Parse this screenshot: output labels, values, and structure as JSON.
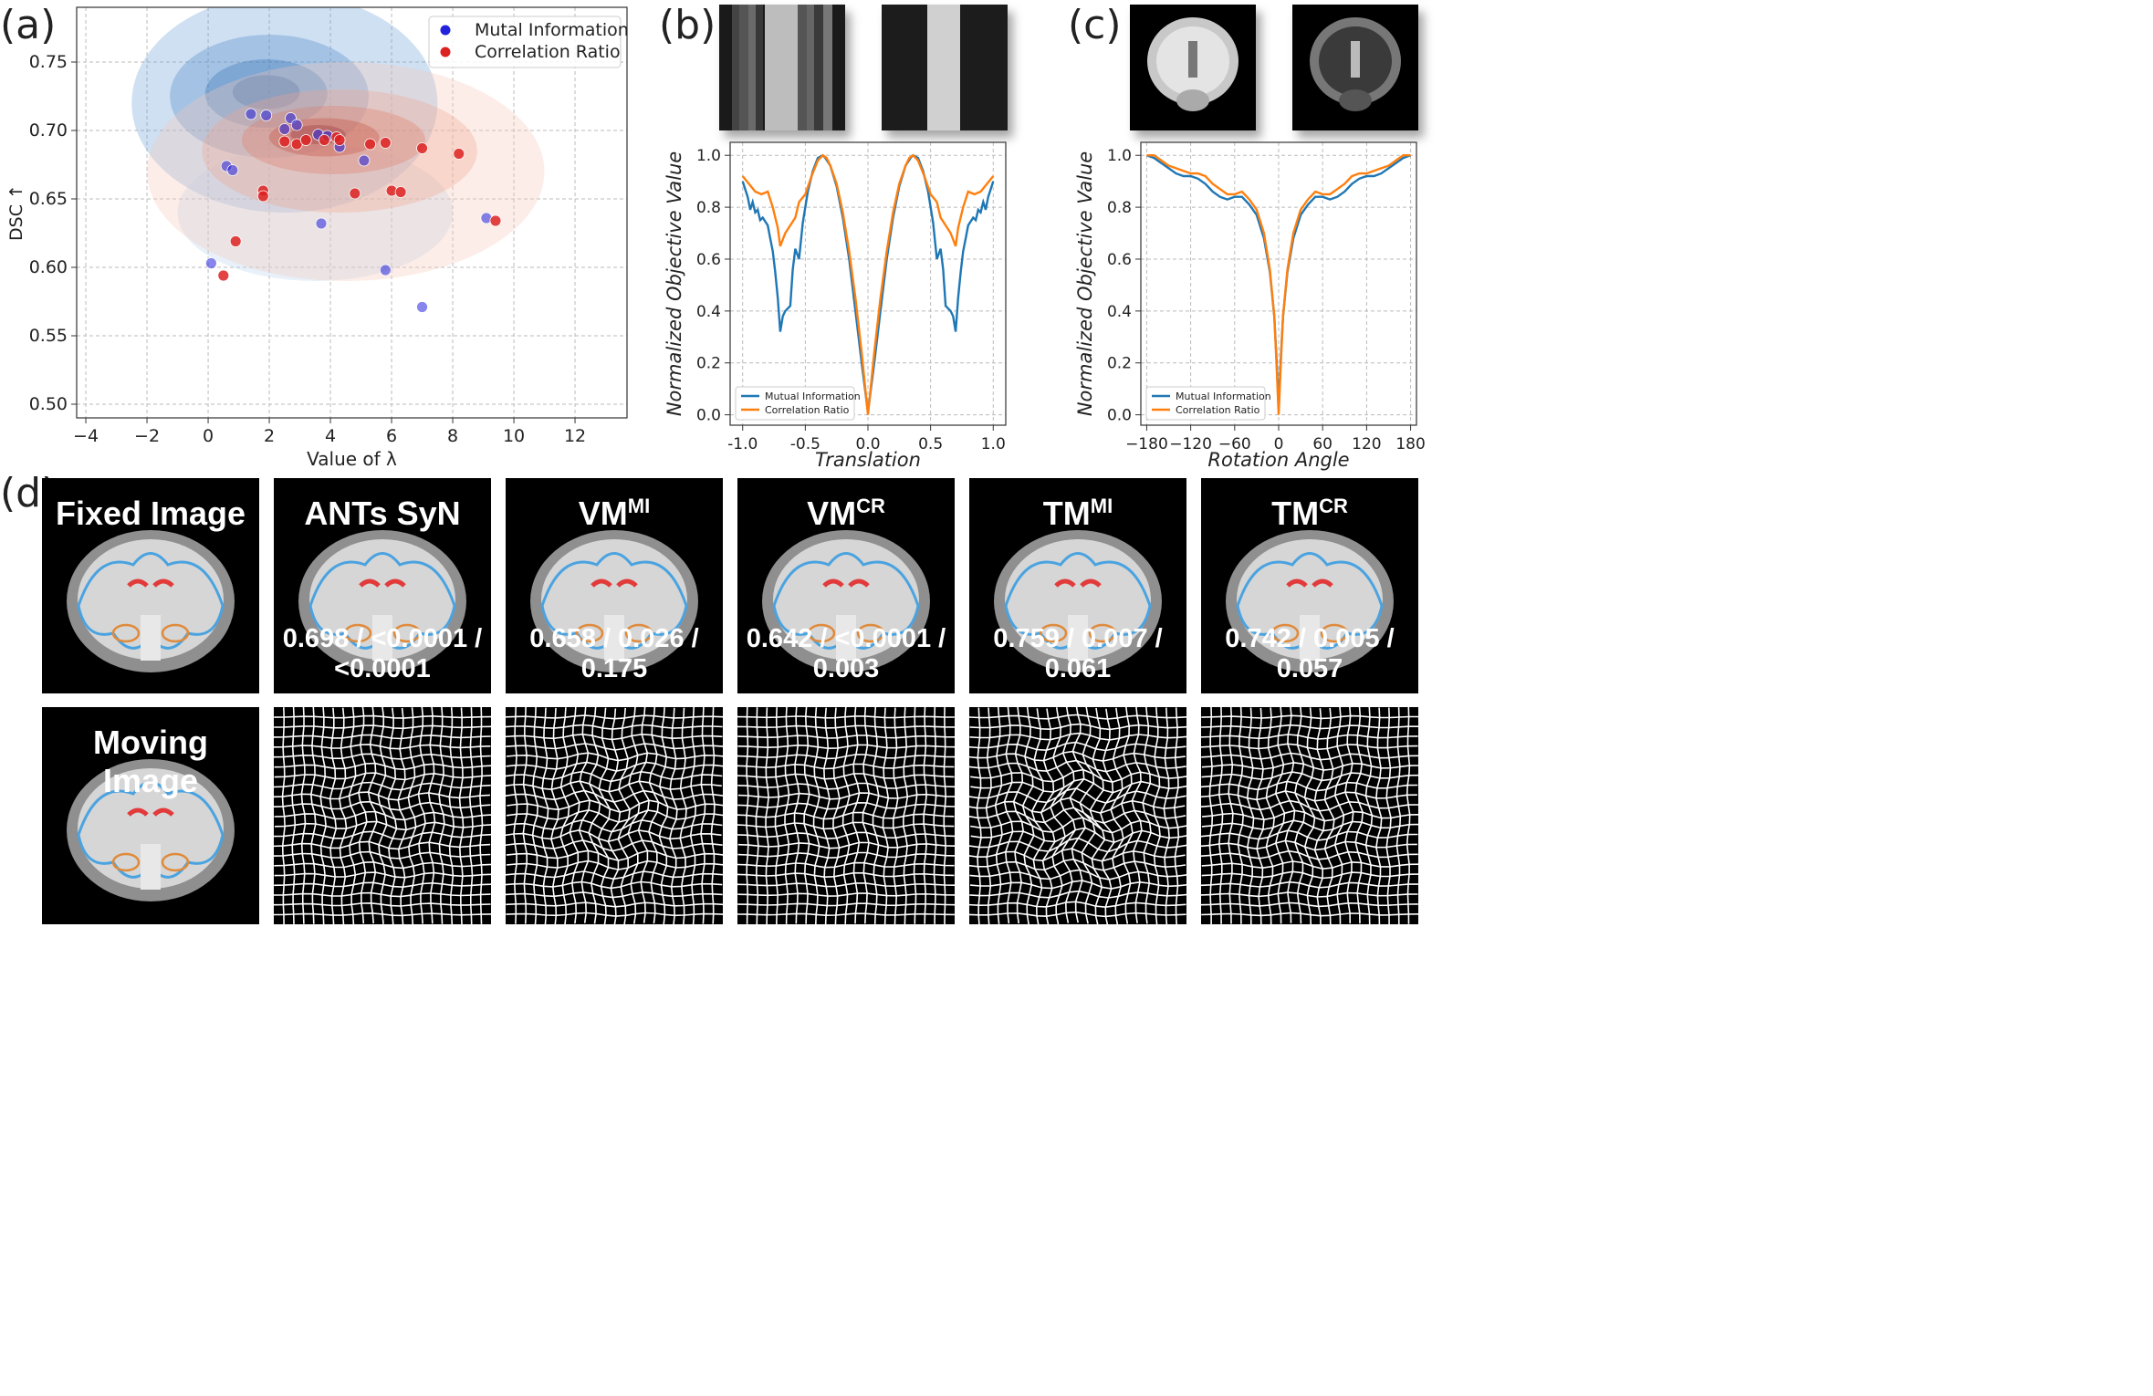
{
  "panels": {
    "a": "(a)",
    "b": "(b)",
    "c": "(c)",
    "d": "(d)"
  },
  "chart_data": [
    {
      "id": "a",
      "type": "scatter",
      "title": "",
      "xlabel": "Value of λ",
      "ylabel": "DSC ↑",
      "xlim": [
        -4.3,
        13.7
      ],
      "ylim": [
        0.49,
        0.79
      ],
      "xticks": [
        -4,
        -2,
        0,
        2,
        4,
        6,
        8,
        10,
        12
      ],
      "yticks": [
        0.5,
        0.55,
        0.6,
        0.65,
        0.7,
        0.75
      ],
      "grid": true,
      "legend_position": "top-right",
      "series": [
        {
          "name": "Mutal Information",
          "color": "#2222dd",
          "points": [
            [
              1.4,
              0.712
            ],
            [
              1.9,
              0.711
            ],
            [
              2.7,
              0.709
            ],
            [
              2.9,
              0.704
            ],
            [
              2.5,
              0.701
            ],
            [
              3.6,
              0.697
            ],
            [
              3.9,
              0.696
            ],
            [
              4.3,
              0.688
            ],
            [
              5.1,
              0.678
            ],
            [
              0.6,
              0.674
            ],
            [
              0.8,
              0.671
            ],
            [
              3.7,
              0.632
            ],
            [
              9.1,
              0.636
            ],
            [
              0.1,
              0.603
            ],
            [
              5.8,
              0.598
            ],
            [
              7.0,
              0.571
            ]
          ]
        },
        {
          "name": "Correlation Ratio",
          "color": "#dd2222",
          "points": [
            [
              2.5,
              0.692
            ],
            [
              2.9,
              0.69
            ],
            [
              3.2,
              0.693
            ],
            [
              3.8,
              0.693
            ],
            [
              4.2,
              0.695
            ],
            [
              4.3,
              0.693
            ],
            [
              5.3,
              0.69
            ],
            [
              5.8,
              0.691
            ],
            [
              7.0,
              0.687
            ],
            [
              8.2,
              0.683
            ],
            [
              1.8,
              0.656
            ],
            [
              1.8,
              0.652
            ],
            [
              4.8,
              0.654
            ],
            [
              6.0,
              0.656
            ],
            [
              6.3,
              0.655
            ],
            [
              9.4,
              0.634
            ],
            [
              0.9,
              0.619
            ],
            [
              0.5,
              0.594
            ]
          ]
        }
      ]
    },
    {
      "id": "b",
      "type": "line",
      "xlabel": "Translation",
      "ylabel": "Normalized Objective Value",
      "xlim": [
        -1.1,
        1.1
      ],
      "ylim": [
        -0.04,
        1.05
      ],
      "xticks": [
        -1.0,
        -0.5,
        0.0,
        0.5,
        1.0
      ],
      "yticks": [
        0.0,
        0.2,
        0.4,
        0.6,
        0.8,
        1.0
      ],
      "grid": true,
      "legend_position": "bottom-left",
      "series": [
        {
          "name": "Mutual Information",
          "color": "#1f77b4",
          "x": [
            -1.0,
            -0.96,
            -0.94,
            -0.92,
            -0.9,
            -0.88,
            -0.86,
            -0.84,
            -0.8,
            -0.78,
            -0.76,
            -0.74,
            -0.72,
            -0.7,
            -0.68,
            -0.66,
            -0.62,
            -0.6,
            -0.58,
            -0.55,
            -0.52,
            -0.48,
            -0.44,
            -0.4,
            -0.36,
            -0.34,
            -0.3,
            -0.25,
            -0.2,
            -0.15,
            -0.1,
            -0.05,
            0.0,
            0.05,
            0.1,
            0.15,
            0.2,
            0.25,
            0.3,
            0.34,
            0.36,
            0.4,
            0.44,
            0.48,
            0.52,
            0.55,
            0.58,
            0.6,
            0.62,
            0.66,
            0.68,
            0.7,
            0.72,
            0.74,
            0.76,
            0.78,
            0.8,
            0.84,
            0.86,
            0.88,
            0.9,
            0.92,
            0.94,
            0.96,
            1.0
          ],
          "y": [
            0.9,
            0.84,
            0.79,
            0.82,
            0.78,
            0.79,
            0.75,
            0.76,
            0.73,
            0.68,
            0.63,
            0.55,
            0.45,
            0.32,
            0.38,
            0.4,
            0.42,
            0.56,
            0.64,
            0.6,
            0.74,
            0.86,
            0.94,
            0.99,
            1.0,
            0.99,
            0.96,
            0.88,
            0.76,
            0.6,
            0.4,
            0.2,
            0.01,
            0.2,
            0.4,
            0.6,
            0.76,
            0.88,
            0.96,
            0.99,
            1.0,
            0.99,
            0.94,
            0.86,
            0.74,
            0.6,
            0.64,
            0.56,
            0.42,
            0.4,
            0.38,
            0.32,
            0.45,
            0.55,
            0.63,
            0.68,
            0.73,
            0.76,
            0.75,
            0.79,
            0.78,
            0.82,
            0.79,
            0.84,
            0.9
          ]
        },
        {
          "name": "Correlation Ratio",
          "color": "#ff7f0e",
          "x": [
            -1.0,
            -0.95,
            -0.9,
            -0.85,
            -0.8,
            -0.76,
            -0.72,
            -0.7,
            -0.66,
            -0.62,
            -0.58,
            -0.55,
            -0.5,
            -0.45,
            -0.4,
            -0.36,
            -0.33,
            -0.3,
            -0.25,
            -0.2,
            -0.15,
            -0.1,
            -0.05,
            0.0,
            0.05,
            0.1,
            0.15,
            0.2,
            0.25,
            0.3,
            0.33,
            0.36,
            0.4,
            0.45,
            0.5,
            0.55,
            0.58,
            0.62,
            0.66,
            0.7,
            0.72,
            0.76,
            0.8,
            0.85,
            0.9,
            0.95,
            1.0
          ],
          "y": [
            0.92,
            0.89,
            0.86,
            0.85,
            0.86,
            0.8,
            0.72,
            0.65,
            0.7,
            0.73,
            0.76,
            0.82,
            0.85,
            0.92,
            0.98,
            1.0,
            0.99,
            0.96,
            0.89,
            0.78,
            0.63,
            0.45,
            0.24,
            0.0,
            0.24,
            0.45,
            0.63,
            0.78,
            0.89,
            0.96,
            0.99,
            1.0,
            0.98,
            0.92,
            0.85,
            0.82,
            0.76,
            0.73,
            0.7,
            0.65,
            0.72,
            0.8,
            0.86,
            0.85,
            0.86,
            0.89,
            0.92
          ]
        }
      ]
    },
    {
      "id": "c",
      "type": "line",
      "xlabel": "Rotation Angle",
      "ylabel": "Normalized Objective Value",
      "xlim": [
        -188,
        188
      ],
      "ylim": [
        -0.04,
        1.05
      ],
      "xticks": [
        -180,
        -120,
        -60,
        0,
        60,
        120,
        180
      ],
      "yticks": [
        0.0,
        0.2,
        0.4,
        0.6,
        0.8,
        1.0
      ],
      "grid": true,
      "legend_position": "bottom-left",
      "series": [
        {
          "name": "Mutual Information",
          "color": "#1f77b4",
          "x": [
            -180,
            -170,
            -160,
            -150,
            -140,
            -130,
            -120,
            -110,
            -100,
            -90,
            -80,
            -70,
            -60,
            -50,
            -40,
            -30,
            -20,
            -12,
            -6,
            -3,
            0,
            3,
            6,
            12,
            20,
            30,
            40,
            50,
            60,
            70,
            80,
            90,
            100,
            110,
            120,
            130,
            140,
            150,
            160,
            170,
            180
          ],
          "y": [
            1.0,
            0.99,
            0.97,
            0.95,
            0.93,
            0.92,
            0.92,
            0.91,
            0.89,
            0.86,
            0.84,
            0.83,
            0.84,
            0.84,
            0.81,
            0.77,
            0.68,
            0.55,
            0.38,
            0.22,
            0.02,
            0.22,
            0.38,
            0.55,
            0.68,
            0.77,
            0.81,
            0.84,
            0.84,
            0.83,
            0.84,
            0.86,
            0.89,
            0.91,
            0.92,
            0.92,
            0.93,
            0.95,
            0.97,
            0.99,
            1.0
          ]
        },
        {
          "name": "Correlation Ratio",
          "color": "#ff7f0e",
          "x": [
            -180,
            -170,
            -160,
            -150,
            -140,
            -130,
            -120,
            -110,
            -100,
            -90,
            -80,
            -70,
            -60,
            -50,
            -40,
            -30,
            -20,
            -12,
            -6,
            -3,
            0,
            3,
            6,
            12,
            20,
            30,
            40,
            50,
            60,
            70,
            80,
            90,
            100,
            110,
            120,
            130,
            140,
            150,
            160,
            170,
            180
          ],
          "y": [
            1.0,
            1.0,
            0.98,
            0.96,
            0.95,
            0.94,
            0.93,
            0.93,
            0.92,
            0.89,
            0.87,
            0.85,
            0.85,
            0.86,
            0.83,
            0.79,
            0.7,
            0.56,
            0.38,
            0.2,
            0.0,
            0.2,
            0.38,
            0.56,
            0.7,
            0.79,
            0.83,
            0.86,
            0.85,
            0.85,
            0.87,
            0.89,
            0.92,
            0.93,
            0.93,
            0.94,
            0.95,
            0.96,
            0.98,
            1.0,
            1.0
          ]
        }
      ]
    }
  ],
  "panel_d": {
    "fixed_label": "Fixed Image",
    "moving_label": "Moving Image",
    "methods": [
      {
        "name": "ANTs SyN",
        "sup": "",
        "score": "0.698 / <0.0001 / <0.0001"
      },
      {
        "name": "VM",
        "sup": "MI",
        "score": "0.658 / 0.026 / 0.175"
      },
      {
        "name": "VM",
        "sup": "CR",
        "score": "0.642 / <0.0001 / 0.003"
      },
      {
        "name": "TM",
        "sup": "MI",
        "score": "0.759 / 0.007 / 0.061"
      },
      {
        "name": "TM",
        "sup": "CR",
        "score": "0.742 / 0.005 / 0.057"
      }
    ]
  }
}
